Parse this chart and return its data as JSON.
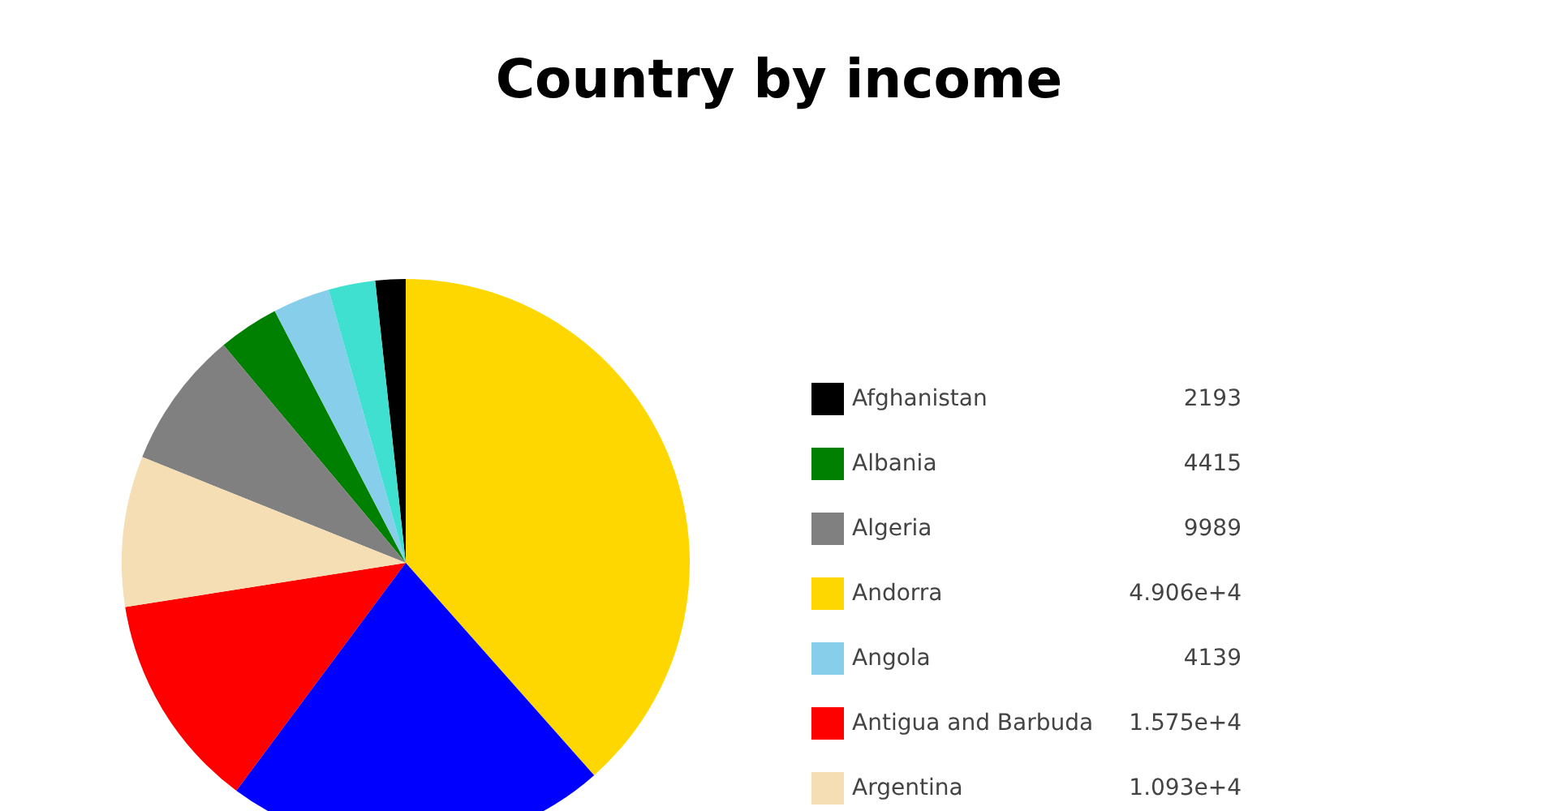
{
  "chart_data": {
    "type": "pie",
    "title": "Country by income",
    "categories": [
      "Afghanistan",
      "Albania",
      "Algeria",
      "Andorra",
      "Angola",
      "Antigua and Barbuda",
      "Argentina",
      null,
      null
    ],
    "values": [
      2193,
      4415,
      9989,
      49060,
      4139,
      15750,
      10930,
      3400,
      27700
    ],
    "value_labels": [
      "2193",
      "4415",
      "9989",
      "4.906e+4",
      "4139",
      "1.575e+4",
      "1.093e+4",
      null,
      null
    ],
    "colors": [
      "#000000",
      "#008000",
      "#808080",
      "#ffd700",
      "#87ceeb",
      "#ff0000",
      "#f5deb3",
      "#40e0d0",
      "#0000ff"
    ],
    "legend": "right"
  }
}
